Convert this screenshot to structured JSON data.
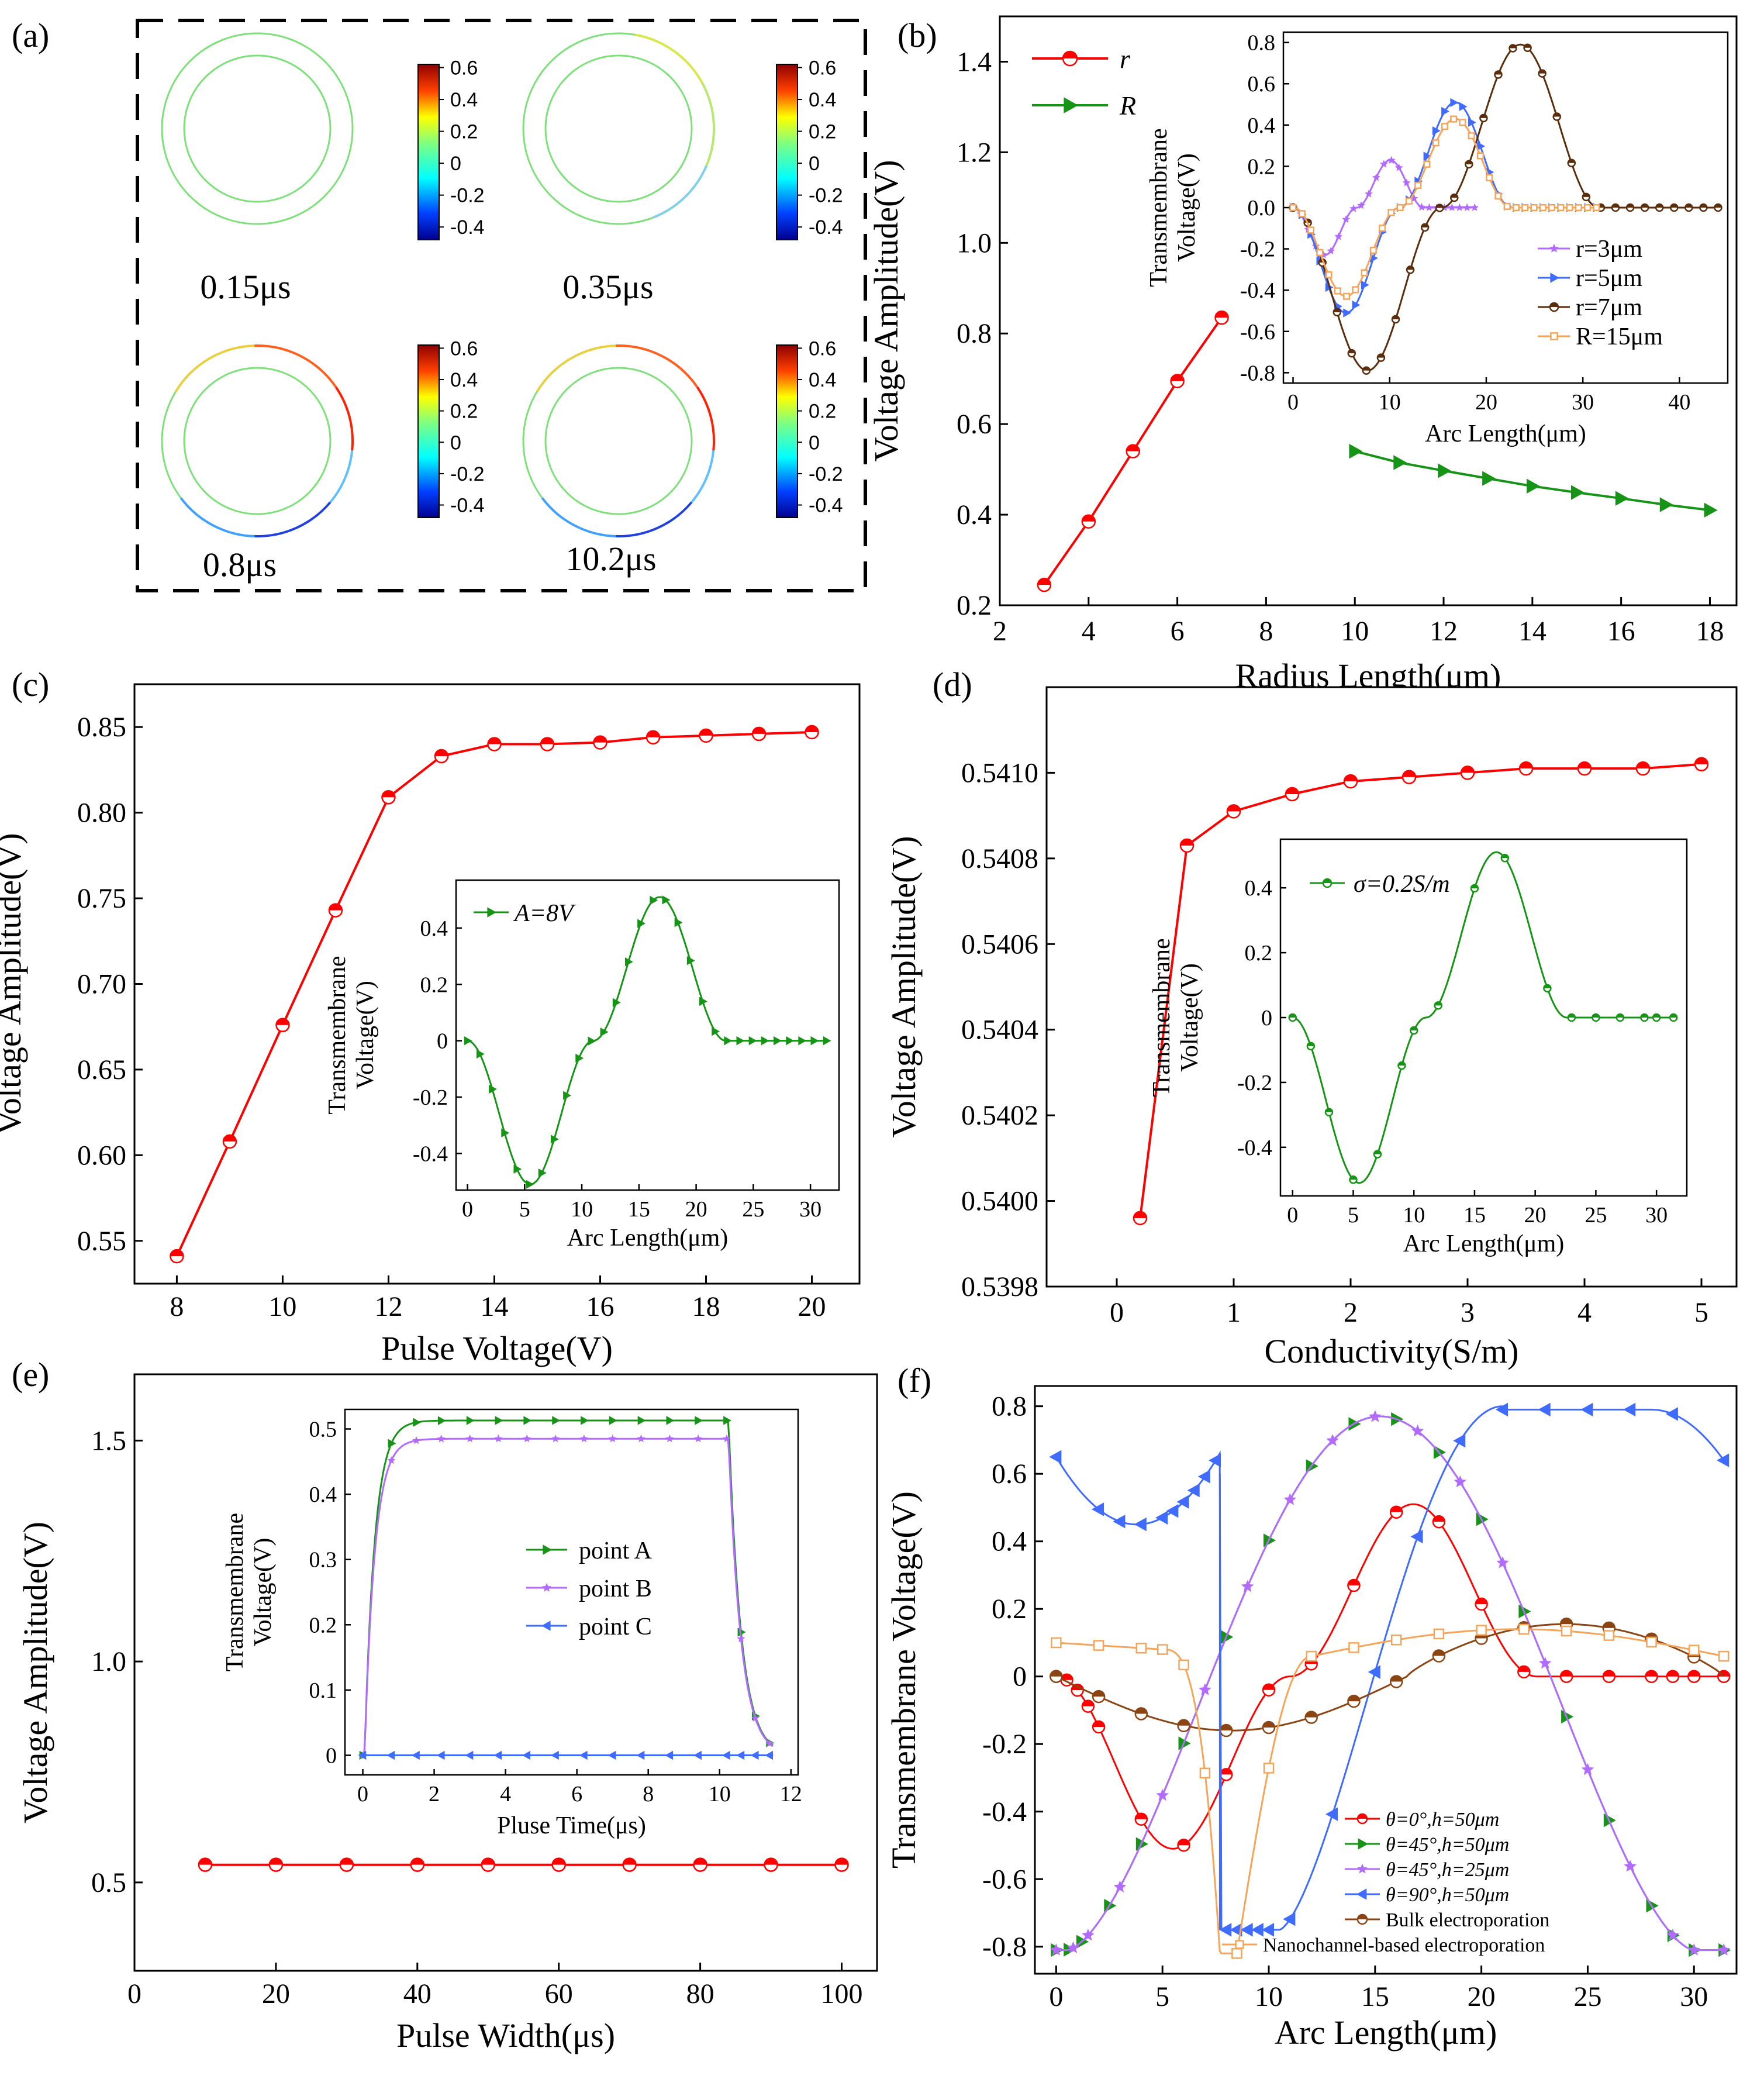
{
  "figure": {
    "panel_labels": [
      "(a)",
      "(b)",
      "(c)",
      "(d)",
      "(e)",
      "(f)"
    ]
  },
  "colors": {
    "red": "#ff0000",
    "green": "#169416",
    "purple": "#b36bff",
    "blue": "#3f6bff",
    "brown": "#8b4513",
    "orange": "#f5a55a",
    "darkbrown": "#5a2d0c"
  },
  "panel_a": {
    "colorbar_ticks": [
      "0.6",
      "0.4",
      "0.2",
      "0",
      "-0.2",
      "-0.4"
    ],
    "cells": [
      {
        "time": "0.15μs",
        "strength": 0.0
      },
      {
        "time": "0.35μs",
        "strength": 0.25
      },
      {
        "time": "0.8μs",
        "strength": 1.0
      },
      {
        "time": "10.2μs",
        "strength": 1.0
      }
    ]
  },
  "chart_data": [
    {
      "id": "b",
      "type": "line",
      "title": "",
      "xlabel": "Radius Length(μm)",
      "ylabel": "Voltage Amplitude(V)",
      "xlim": [
        2,
        18.6
      ],
      "ylim": [
        0.2,
        1.5
      ],
      "xticks": [
        "2",
        "4",
        "6",
        "8",
        "10",
        "12",
        "14",
        "16",
        "18"
      ],
      "yticks": [
        "0.2",
        "0.4",
        "0.6",
        "0.8",
        "1.0",
        "1.2",
        "1.4"
      ],
      "legend": [
        "r",
        "R"
      ],
      "series": [
        {
          "name": "r",
          "color": "red",
          "marker": "circle",
          "x": [
            3,
            4,
            5,
            6,
            7
          ],
          "y": [
            0.245,
            0.385,
            0.54,
            0.695,
            0.835
          ]
        },
        {
          "name": "R",
          "color": "green",
          "marker": "tri",
          "x": [
            10,
            11,
            12,
            13,
            14,
            15,
            16,
            17,
            18
          ],
          "y": [
            0.54,
            0.515,
            0.497,
            0.48,
            0.463,
            0.449,
            0.436,
            0.422,
            0.41
          ]
        }
      ],
      "inset": {
        "xlabel": "Arc Length(μm)",
        "ylabel": [
          "Transmembrane",
          "Voltage(V)"
        ],
        "xlim": [
          -1,
          45
        ],
        "ylim": [
          -0.85,
          0.85
        ],
        "xticks": [
          "0",
          "10",
          "20",
          "30",
          "40"
        ],
        "yticks": [
          "-0.8",
          "-0.6",
          "-0.4",
          "-0.2",
          "0.0",
          "0.2",
          "0.4",
          "0.6",
          "0.8"
        ],
        "legend": [
          "r=3μm",
          "r=5μm",
          "r=7μm",
          "R=15μm"
        ],
        "series": [
          {
            "name": "r=3μm",
            "color": "purple",
            "marker": "star",
            "n": 25,
            "A": 0.23,
            "L": 18.8
          },
          {
            "name": "r=5μm",
            "color": "blue",
            "marker": "tri",
            "n": 35,
            "A": 0.51,
            "L": 31.4
          },
          {
            "name": "r=7μm",
            "color": "darkbrown",
            "marker": "circle",
            "n": 30,
            "A": 0.79,
            "L": 44
          },
          {
            "name": "R=15μm",
            "color": "orange",
            "marker": "square",
            "n": 35,
            "A": 0.43,
            "L": 31.4
          }
        ]
      }
    },
    {
      "id": "c",
      "type": "line",
      "title": "",
      "xlabel": "Pulse Voltage(V)",
      "ylabel": "Voltage Amplitude(V)",
      "xlim": [
        7.2,
        20.9
      ],
      "ylim": [
        0.525,
        0.875
      ],
      "xticks": [
        "8",
        "10",
        "12",
        "14",
        "16",
        "18",
        "20"
      ],
      "yticks": [
        "0.55",
        "0.60",
        "0.65",
        "0.70",
        "0.75",
        "0.80",
        "0.85"
      ],
      "series": [
        {
          "name": "amplitude",
          "color": "red",
          "marker": "circle",
          "x": [
            8,
            9,
            10,
            11,
            12,
            13,
            14,
            15,
            16,
            17,
            18,
            19,
            20
          ],
          "y": [
            0.541,
            0.608,
            0.676,
            0.743,
            0.809,
            0.833,
            0.84,
            0.84,
            0.841,
            0.844,
            0.845,
            0.846,
            0.847
          ]
        }
      ],
      "inset": {
        "xlabel": "Arc Length(μm)",
        "ylabel": [
          "Transmembrane",
          "Voltage(V)"
        ],
        "xlim": [
          -1,
          32.5
        ],
        "ylim": [
          -0.53,
          0.57
        ],
        "xticks": [
          "0",
          "5",
          "10",
          "15",
          "20",
          "25",
          "30"
        ],
        "yticks": [
          "-0.4",
          "-0.2",
          "0",
          "0.2",
          "0.4"
        ],
        "legend": [
          "A=8V"
        ],
        "series": [
          {
            "name": "A=8V",
            "color": "green",
            "marker": "tri",
            "n": 30,
            "A": 0.51,
            "L": 31.4
          }
        ]
      }
    },
    {
      "id": "d",
      "type": "line",
      "title": "",
      "xlabel": "Conductivity(S/m)",
      "ylabel": "Voltage Amplitude(V)",
      "xlim": [
        -0.6,
        5.3
      ],
      "ylim": [
        0.5398,
        0.5412
      ],
      "xticks": [
        "0",
        "1",
        "2",
        "3",
        "4",
        "5"
      ],
      "yticks": [
        "0.5398",
        "0.5400",
        "0.5402",
        "0.5404",
        "0.5406",
        "0.5408",
        "0.5410"
      ],
      "series": [
        {
          "name": "amplitude",
          "color": "red",
          "marker": "circle",
          "x": [
            0.2,
            0.6,
            1,
            1.5,
            2,
            2.5,
            3,
            3.5,
            4,
            4.5,
            5
          ],
          "y": [
            0.53996,
            0.54083,
            0.54091,
            0.54095,
            0.54098,
            0.54099,
            0.541,
            0.54101,
            0.54101,
            0.54101,
            0.54102
          ]
        }
      ],
      "inset": {
        "xlabel": "Arc Length(μm)",
        "ylabel": [
          "Transmembrane",
          "Voltage(V)"
        ],
        "xlim": [
          -1,
          32.5
        ],
        "ylim": [
          -0.55,
          0.55
        ],
        "xticks": [
          "0",
          "5",
          "10",
          "15",
          "20",
          "25",
          "30"
        ],
        "yticks": [
          "-0.4",
          "-0.2",
          "0",
          "0.2",
          "0.4"
        ],
        "legend": [
          "σ=0.2S/m"
        ],
        "series": [
          {
            "name": "σ=0.2S/m",
            "color": "green",
            "marker": "circle",
            "n": 13,
            "A": 0.51,
            "L": 31.4
          }
        ]
      }
    },
    {
      "id": "e",
      "type": "line",
      "title": "",
      "xlabel": "Pulse Width(μs)",
      "ylabel": "Voltage Amplitude(V)",
      "xlim": [
        0,
        105
      ],
      "ylim": [
        0.3,
        1.65
      ],
      "xticks": [
        "0",
        "20",
        "40",
        "60",
        "80",
        "100"
      ],
      "yticks": [
        "0.5",
        "1.0",
        "1.5"
      ],
      "series": [
        {
          "name": "amplitude",
          "color": "red",
          "marker": "circle",
          "x": [
            10,
            20,
            30,
            40,
            50,
            60,
            70,
            80,
            90,
            100
          ],
          "y": [
            0.54,
            0.54,
            0.54,
            0.54,
            0.54,
            0.54,
            0.54,
            0.54,
            0.54,
            0.54
          ]
        }
      ],
      "inset": {
        "xlabel": "Pluse Time(μs)",
        "ylabel": [
          "Transmembrane",
          "Voltage(V)"
        ],
        "xlim": [
          -0.5,
          12.2
        ],
        "ylim": [
          -0.03,
          0.53
        ],
        "xticks": [
          "0",
          "2",
          "4",
          "6",
          "8",
          "10",
          "12"
        ],
        "yticks": [
          "0",
          "0.1",
          "0.2",
          "0.3",
          "0.4",
          "0.5"
        ],
        "legend": [
          "point A",
          "point B",
          "point C"
        ],
        "series": [
          {
            "name": "point A",
            "color": "green",
            "marker": "tri",
            "plateau": 0.513
          },
          {
            "name": "point B",
            "color": "purple",
            "marker": "star",
            "plateau": 0.485
          },
          {
            "name": "point C",
            "color": "blue",
            "marker": "triL",
            "plateau": 0.0
          }
        ]
      }
    },
    {
      "id": "f",
      "type": "line",
      "title": "",
      "xlabel": "Arc Length(μm)",
      "ylabel": "Transmembrane Voltage(V)",
      "xlim": [
        -1,
        32
      ],
      "ylim": [
        -0.88,
        0.86
      ],
      "xticks": [
        "0",
        "5",
        "10",
        "15",
        "20",
        "25",
        "30"
      ],
      "yticks": [
        "-0.8",
        "-0.6",
        "-0.4",
        "-0.2",
        "0",
        "0.2",
        "0.4",
        "0.6",
        "0.8"
      ],
      "legend": [
        "θ=0°,h=50μm",
        "θ=45°,h=50μm",
        "θ=45°,h=25μm",
        "θ=90°,h=50μm",
        "Bulk electroporation",
        "Nanochannel-based electroporation"
      ],
      "series": [
        {
          "name": "θ=0°,h=50μm",
          "color": "red",
          "marker": "circle"
        },
        {
          "name": "θ=45°,h=50μm",
          "color": "green",
          "marker": "tri"
        },
        {
          "name": "θ=45°,h=25μm",
          "color": "purple",
          "marker": "star"
        },
        {
          "name": "θ=90°,h=50μm",
          "color": "blue",
          "marker": "triL"
        },
        {
          "name": "Bulk electroporation",
          "color": "brown",
          "marker": "circle"
        },
        {
          "name": "Nanochannel-based electroporation",
          "color": "orange",
          "marker": "square"
        }
      ]
    }
  ]
}
